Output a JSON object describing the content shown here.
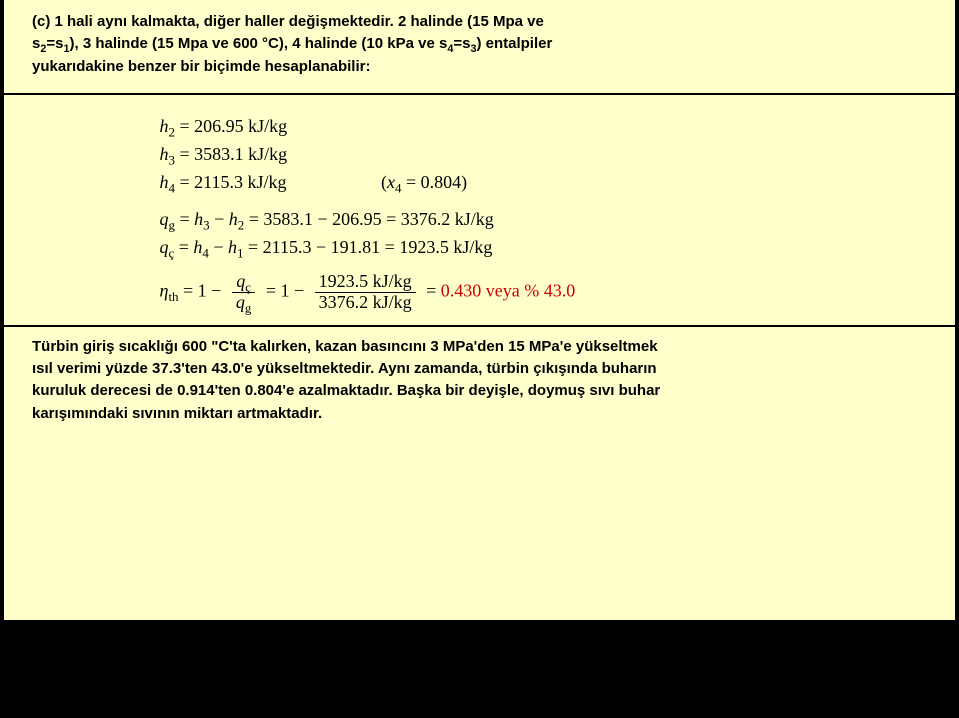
{
  "top": {
    "line1_a": "(c) 1 hali aynı kalmakta, diğer haller değişmektedir. 2 halinde (15 Mpa ve",
    "line2_a": "s",
    "line2_sub1": "2",
    "line2_b": "=s",
    "line2_sub2": "1",
    "line2_c": "), 3 halinde (15 Mpa ve 600 °C), 4 halinde (10 kPa ve s",
    "line2_sub3": "4",
    "line2_d": "=s",
    "line2_sub4": "3",
    "line2_e": ") entalpiler",
    "line3": "yukarıdakine benzer bir biçimde hesaplanabilir:"
  },
  "eq": {
    "h2": "h₂ = 206.95 kJ/kg",
    "h3": "h₃ = 3583.1 kJ/kg",
    "h4_a": "h₄ = 2115.3 kJ/kg",
    "h4_b": "(x₄ = 0.804)",
    "qg": "qg = h₃ − h₂ = 3583.1 − 206.95 = 3376.2 kJ/kg",
    "qc": "qç = h₄ − h₁ = 2115.3 − 191.81 = 1923.5 kJ/kg",
    "eta_sym": "η",
    "eta_sub": "th",
    "eta_eq": " = 1 − ",
    "f1_num": "qç",
    "f1_den": "qg",
    "eta_eq2": " = 1 − ",
    "f2_num": "1923.5 kJ/kg",
    "f2_den": "3376.2 kJ/kg",
    "eta_eq3": " = ",
    "eta_val": "0.430 veya % 43.0"
  },
  "bottom": {
    "line1": "Türbin giriş sıcaklığı 600 \"C'ta kalırken, kazan basıncını 3 MPa'den 15 MPa'e yükseltmek",
    "line2": "ısıl verimi yüzde 37.3'ten 43.0'e yükseltmektedir. Aynı zamanda, türbin çıkışında buharın",
    "line3": "kuruluk derecesi de 0.914'ten 0.804'e azalmaktadır. Başka bir deyişle, doymuş sıvı buhar",
    "line4": "karışımındaki sıvının miktarı artmaktadır."
  }
}
